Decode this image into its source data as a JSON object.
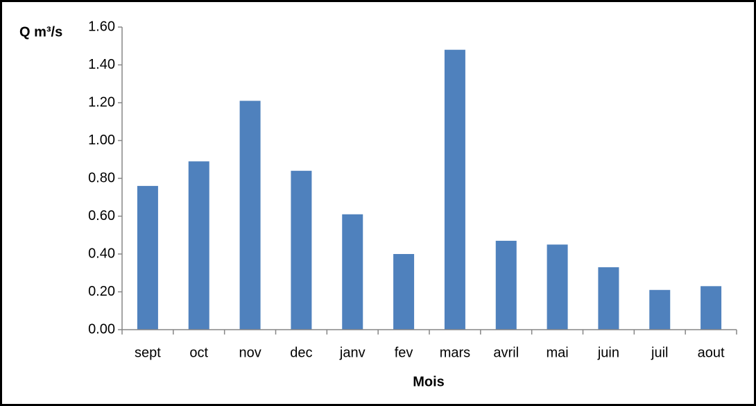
{
  "chart_data": {
    "type": "bar",
    "y_label": "Q m³/s",
    "x_label": "Mois",
    "categories": [
      "sept",
      "oct",
      "nov",
      "dec",
      "janv",
      "fev",
      "mars",
      "avril",
      "mai",
      "juin",
      "juil",
      "aout"
    ],
    "values": [
      0.76,
      0.89,
      1.21,
      0.84,
      0.61,
      0.4,
      1.48,
      0.47,
      0.45,
      0.33,
      0.21,
      0.23
    ],
    "color": "#4f81bd",
    "ylim": [
      0,
      1.6
    ],
    "yticks": [
      {
        "value": 0,
        "label": "0.00"
      },
      {
        "value": 0.2,
        "label": "0.20"
      },
      {
        "value": 0.4,
        "label": "0.40"
      },
      {
        "value": 0.6,
        "label": "0.60"
      },
      {
        "value": 0.8,
        "label": "0.80"
      },
      {
        "value": 1.0,
        "label": "1.00"
      },
      {
        "value": 1.2,
        "label": "1.20"
      },
      {
        "value": 1.4,
        "label": "1.40"
      },
      {
        "value": 1.6,
        "label": "1.60"
      }
    ],
    "grid": false
  }
}
